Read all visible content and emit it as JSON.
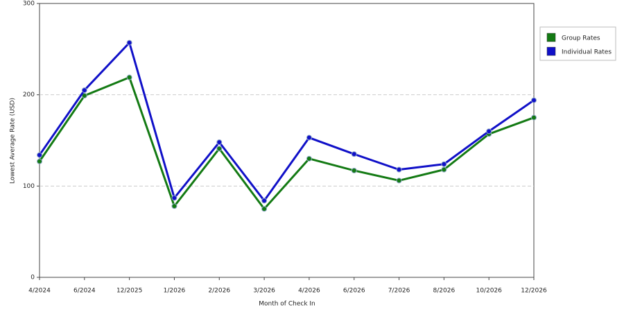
{
  "chart_data": {
    "type": "line",
    "x_label": "Month of Check In",
    "y_label": "Lowest Average Rate (USD)",
    "categories": [
      "4/2024",
      "6/2024",
      "12/2025",
      "1/2026",
      "2/2026",
      "3/2026",
      "4/2026",
      "6/2026",
      "7/2026",
      "8/2026",
      "10/2026",
      "12/2026"
    ],
    "series": [
      {
        "name": "Group Rates",
        "color": "#137a13",
        "values": [
          127,
          199,
          219,
          78,
          141,
          75,
          130,
          117,
          106,
          118,
          157,
          175
        ]
      },
      {
        "name": "Individual Rates",
        "color": "#1010c8",
        "values": [
          134,
          205,
          257,
          87,
          148,
          84,
          153,
          135,
          118,
          124,
          160,
          194
        ]
      }
    ],
    "ylim": [
      0,
      300
    ],
    "yticks": [
      0,
      100,
      200,
      300
    ],
    "grid": true,
    "legend": "right"
  }
}
